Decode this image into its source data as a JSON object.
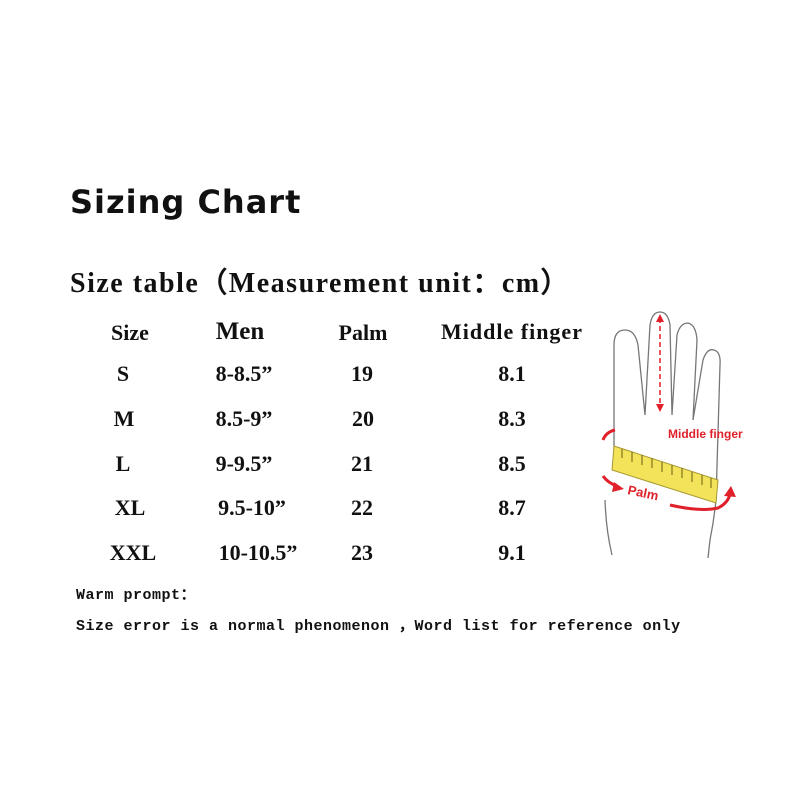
{
  "title": "Sizing Chart",
  "subtitle": "Size table（Measurement unit：cm）",
  "table": {
    "headers": [
      "Size",
      "Men",
      "Palm",
      "Middle finger"
    ],
    "rows": [
      [
        "S",
        "8-8.5”",
        "19",
        "8.1"
      ],
      [
        "M",
        "8.5-9”",
        "20",
        "8.3"
      ],
      [
        "L",
        "9-9.5”",
        "21",
        "8.5"
      ],
      [
        "XL",
        "9.5-10”",
        "22",
        "8.7"
      ],
      [
        "XXL",
        "10-10.5”",
        "23",
        "9.1"
      ]
    ]
  },
  "diagram": {
    "middle_finger_label": "Middle finger",
    "palm_label": "Palm",
    "accent_color": "#e0202a",
    "tape_color": "#f2e35a"
  },
  "notes": {
    "heading": "Warm prompt：",
    "text": "Size error is a normal phenomenon ，Word list for reference only"
  }
}
